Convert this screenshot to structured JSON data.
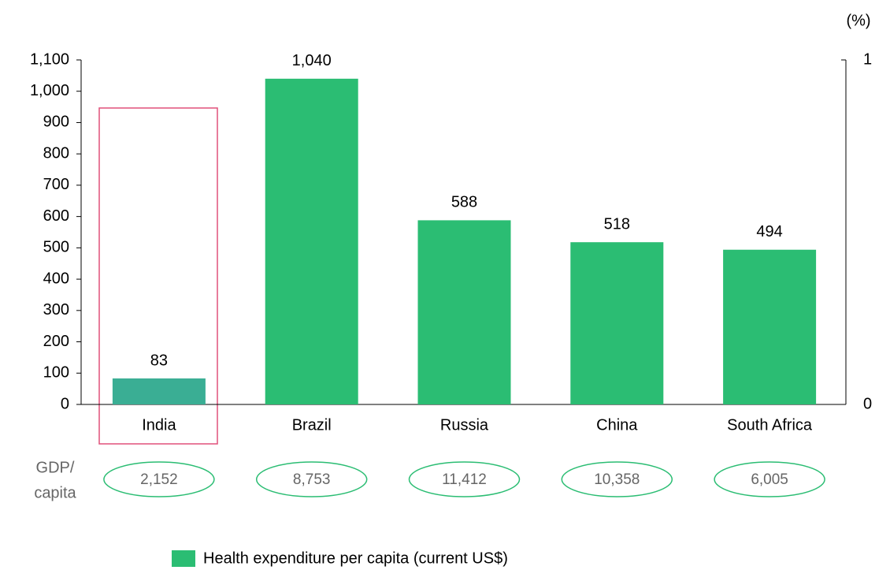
{
  "chart_data": {
    "type": "bar",
    "categories": [
      "India",
      "Brazil",
      "Russia",
      "China",
      "South Africa"
    ],
    "series": [
      {
        "name": "Health expenditure per capita (current US$)",
        "color": "#2bbd73",
        "colors": [
          "#3aae94",
          "#2bbd73",
          "#2bbd73",
          "#2bbd73",
          "#2bbd73"
        ],
        "values": [
          83,
          1040,
          588,
          518,
          494
        ],
        "value_labels": [
          "83",
          "1,040",
          "588",
          "518",
          "494"
        ]
      }
    ],
    "ylim": [
      0,
      1100
    ],
    "yticks": [
      0,
      100,
      200,
      300,
      400,
      500,
      600,
      700,
      800,
      900,
      {
        "value": 1000,
        "label": "1,000"
      },
      {
        "value": 1100,
        "label": "1,100"
      }
    ],
    "y2lim": [
      0,
      1
    ],
    "y2ticks": [
      0,
      1
    ],
    "y2_label": "(%)",
    "gdp_per_capita": {
      "label_lines": [
        "GDP/",
        "capita"
      ],
      "values": [
        2152,
        8753,
        11412,
        10358,
        6005
      ],
      "value_labels": [
        "2,152",
        "8,753",
        "11,412",
        "10,358",
        "6,005"
      ]
    }
  }
}
